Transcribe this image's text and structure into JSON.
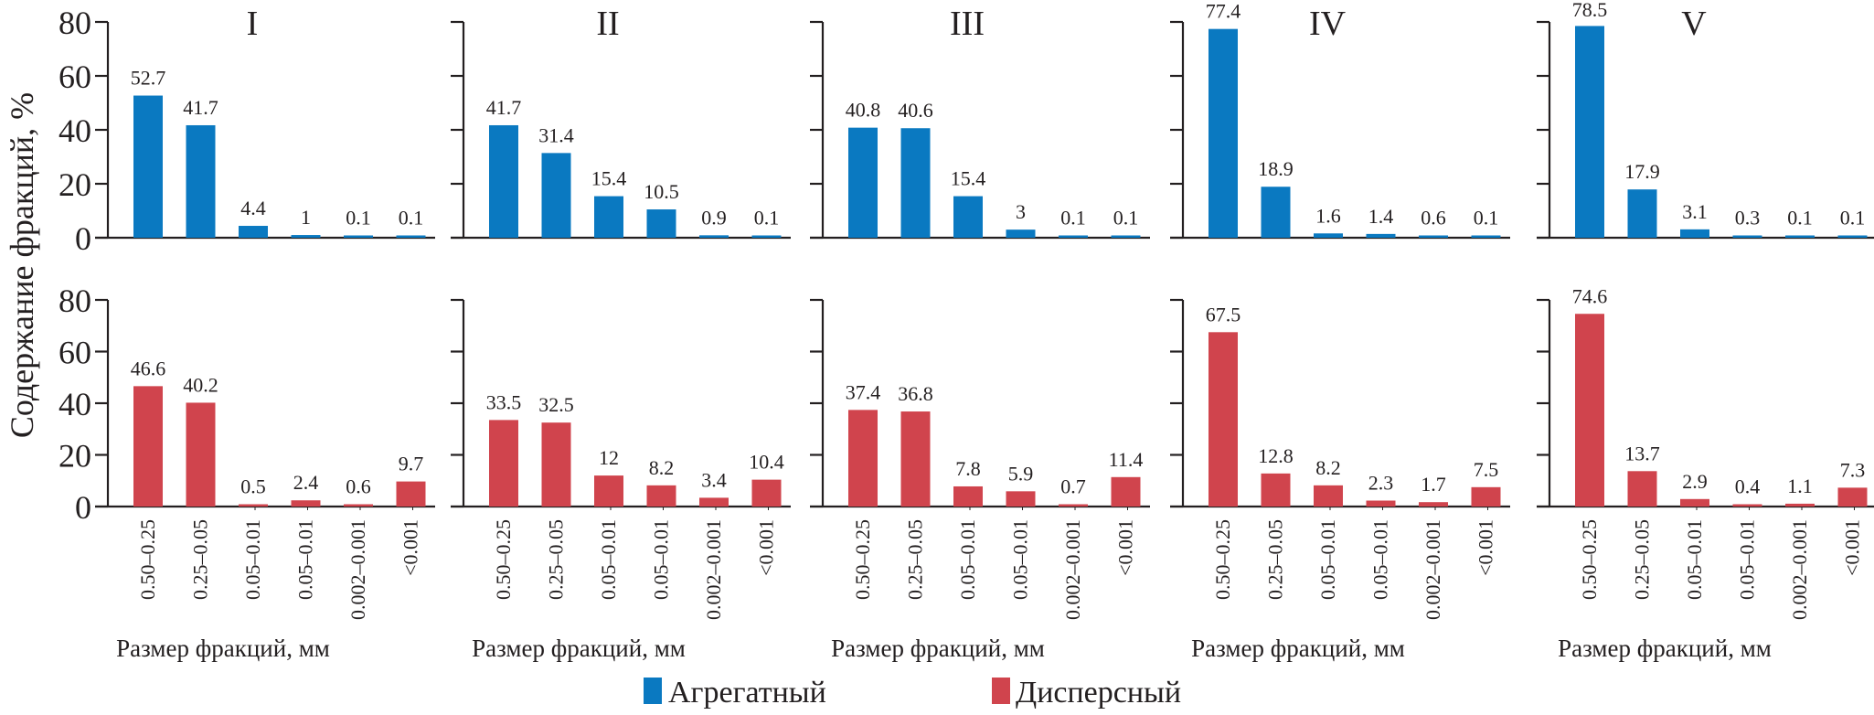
{
  "chart_data": {
    "type": "bar",
    "ylabel": "Содержание фракций, %",
    "xlabel": "Размер фракций, мм",
    "ylim": [
      0,
      80
    ],
    "yticks": [
      0,
      20,
      40,
      60,
      80
    ],
    "categories": [
      "0.50–0.25",
      "0.25–0.05",
      "0.05–0.01",
      "0.05–0.01",
      "0.002–0.001",
      "<0.001"
    ],
    "legend": {
      "placement": "bottom-center",
      "items": [
        {
          "name": "Агрегатный",
          "color": "#0a79c1"
        },
        {
          "name": "Дисперсный",
          "color": "#d0444d"
        }
      ]
    },
    "panels": [
      {
        "title": "I",
        "series": [
          {
            "name": "Агрегатный",
            "values": [
              52.7,
              41.7,
              4.4,
              1,
              0.1,
              0.1
            ],
            "labels": [
              "52.7",
              "41.7",
              "4.4",
              "1",
              "0.1",
              "0.1"
            ]
          },
          {
            "name": "Дисперсный",
            "values": [
              46.6,
              40.2,
              0.5,
              2.4,
              0.6,
              9.7
            ],
            "labels": [
              "46.6",
              "40.2",
              "0.5",
              "2.4",
              "0.6",
              "9.7"
            ]
          }
        ]
      },
      {
        "title": "II",
        "series": [
          {
            "name": "Агрегатный",
            "values": [
              41.7,
              31.4,
              15.4,
              10.5,
              0.9,
              0.1
            ],
            "labels": [
              "41.7",
              "31.4",
              "15.4",
              "10.5",
              "0.9",
              "0.1"
            ]
          },
          {
            "name": "Дисперсный",
            "values": [
              33.5,
              32.5,
              12,
              8.2,
              3.4,
              10.4
            ],
            "labels": [
              "33.5",
              "32.5",
              "12",
              "8.2",
              "3.4",
              "10.4"
            ]
          }
        ]
      },
      {
        "title": "III",
        "series": [
          {
            "name": "Агрегатный",
            "values": [
              40.8,
              40.6,
              15.4,
              3,
              0.1,
              0.1
            ],
            "labels": [
              "40.8",
              "40.6",
              "15.4",
              "3",
              "0.1",
              "0.1"
            ]
          },
          {
            "name": "Дисперсный",
            "values": [
              37.4,
              36.8,
              7.8,
              5.9,
              0.7,
              11.4
            ],
            "labels": [
              "37.4",
              "36.8",
              "7.8",
              "5.9",
              "0.7",
              "11.4"
            ]
          }
        ]
      },
      {
        "title": "IV",
        "series": [
          {
            "name": "Агрегатный",
            "values": [
              77.4,
              18.9,
              1.6,
              1.4,
              0.6,
              0.1
            ],
            "labels": [
              "77.4",
              "18.9",
              "1.6",
              "1.4",
              "0.6",
              "0.1"
            ]
          },
          {
            "name": "Дисперсный",
            "values": [
              67.5,
              12.8,
              8.2,
              2.3,
              1.7,
              7.5
            ],
            "labels": [
              "67.5",
              "12.8",
              "8.2",
              "2.3",
              "1.7",
              "7.5"
            ]
          }
        ]
      },
      {
        "title": "V",
        "series": [
          {
            "name": "Агрегатный",
            "values": [
              78.5,
              17.9,
              3.1,
              0.3,
              0.1,
              0.1
            ],
            "labels": [
              "78.5",
              "17.9",
              "3.1",
              "0.3",
              "0.1",
              "0.1"
            ]
          },
          {
            "name": "Дисперсный",
            "values": [
              74.6,
              13.7,
              2.9,
              0.4,
              1.1,
              7.3
            ],
            "labels": [
              "74.6",
              "13.7",
              "2.9",
              "0.4",
              "1.1",
              "7.3"
            ]
          }
        ]
      }
    ]
  }
}
